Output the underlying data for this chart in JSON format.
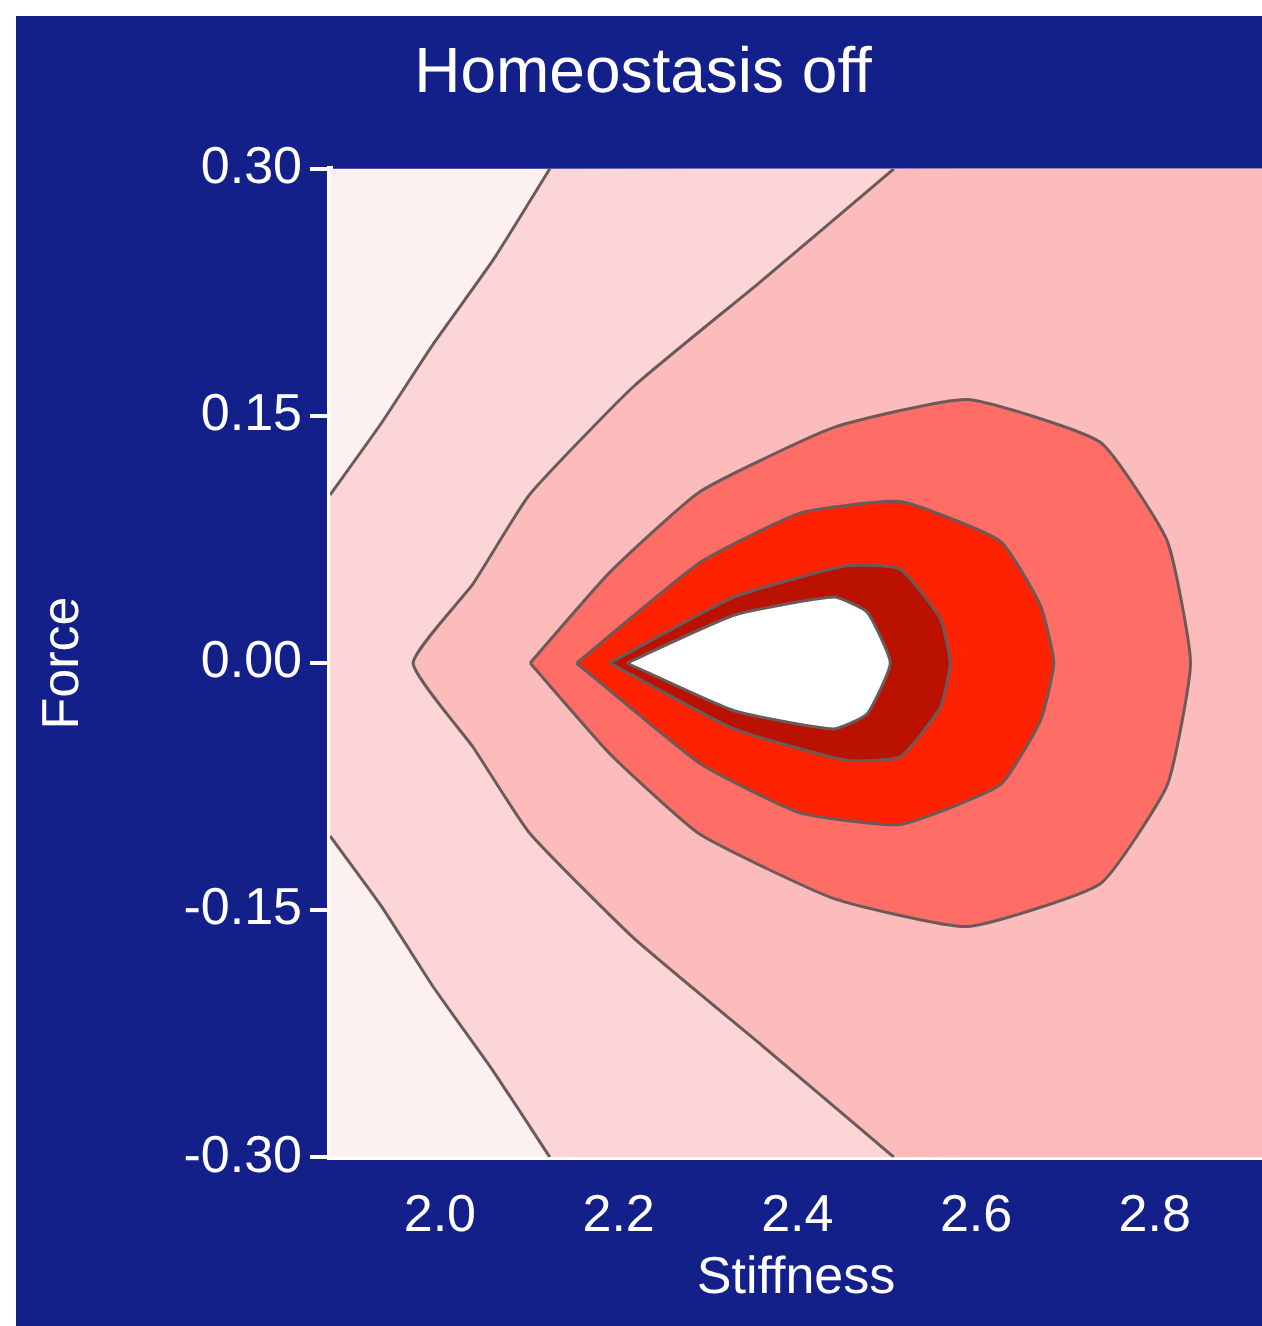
{
  "chart_data": {
    "type": "area",
    "title": "Homeostasis off",
    "xlabel": "Stiffness",
    "ylabel": "Force",
    "xlim": [
      1.877,
      2.92
    ],
    "ylim": [
      -0.3,
      0.3
    ],
    "xticks": [
      {
        "value": 2.0,
        "label": "2.0"
      },
      {
        "value": 2.2,
        "label": "2.2"
      },
      {
        "value": 2.4,
        "label": "2.4"
      },
      {
        "value": 2.6,
        "label": "2.6"
      },
      {
        "value": 2.8,
        "label": "2.8"
      }
    ],
    "yticks": [
      {
        "value": -0.3,
        "label": "-0.30"
      },
      {
        "value": -0.15,
        "label": "-0.15"
      },
      {
        "value": 0,
        "label": "0.00"
      },
      {
        "value": 0.15,
        "label": "0.15"
      },
      {
        "value": 0.3,
        "label": "0.30"
      }
    ],
    "grid": false,
    "legend": false,
    "series": [
      {
        "color": "#fcd6d6",
        "x": [
          2.123,
          2.06,
          1.993,
          1.935,
          1.877,
          null,
          1.877,
          1.935,
          1.993,
          2.06,
          2.123
        ],
        "values": [
          0.3,
          0.245,
          0.194,
          0.146,
          0.102,
          null,
          -0.105,
          -0.148,
          -0.197,
          -0.248,
          -0.3
        ]
      },
      {
        "color": "#fdbcbc",
        "x": [
          2.508,
          2.36,
          2.217,
          2.1,
          2.037,
          1.97,
          2.037,
          2.1,
          2.217,
          2.36,
          2.508
        ],
        "values": [
          0.3,
          0.232,
          0.168,
          0.102,
          0.048,
          0,
          -0.051,
          -0.103,
          -0.167,
          -0.232,
          -0.3
        ]
      },
      {
        "color": "#ff6e66",
        "x": [
          2.101,
          2.19,
          2.291,
          2.441,
          2.59,
          2.739,
          2.814,
          2.84,
          2.814,
          2.739,
          2.59,
          2.441,
          2.291,
          2.19,
          2.101
        ],
        "values": [
          0,
          0.055,
          0.104,
          0.143,
          0.16,
          0.134,
          0.074,
          0,
          -0.074,
          -0.134,
          -0.16,
          -0.143,
          -0.104,
          -0.055,
          0
        ]
      },
      {
        "color": "#ff2200",
        "x": [
          2.153,
          2.291,
          2.403,
          2.515,
          2.627,
          2.672,
          2.687,
          2.672,
          2.627,
          2.515,
          2.403,
          2.291,
          2.153
        ],
        "values": [
          0,
          0.061,
          0.091,
          0.098,
          0.074,
          0.035,
          0,
          -0.035,
          -0.074,
          -0.098,
          -0.091,
          -0.061,
          0
        ]
      },
      {
        "color": "#bb1100",
        "x": [
          2.19,
          2.329,
          2.455,
          2.515,
          2.56,
          2.571,
          2.56,
          2.515,
          2.455,
          2.329,
          2.19
        ],
        "values": [
          0,
          0.04,
          0.059,
          0.057,
          0.027,
          0,
          -0.027,
          -0.057,
          -0.059,
          -0.04,
          0
        ]
      },
      {
        "color": "#ffffff",
        "x": [
          2.209,
          2.329,
          2.441,
          2.478,
          2.504,
          2.478,
          2.441,
          2.329,
          2.209
        ],
        "values": [
          0,
          0.029,
          0.04,
          0.031,
          0,
          -0.031,
          -0.04,
          -0.029,
          0
        ]
      }
    ]
  }
}
